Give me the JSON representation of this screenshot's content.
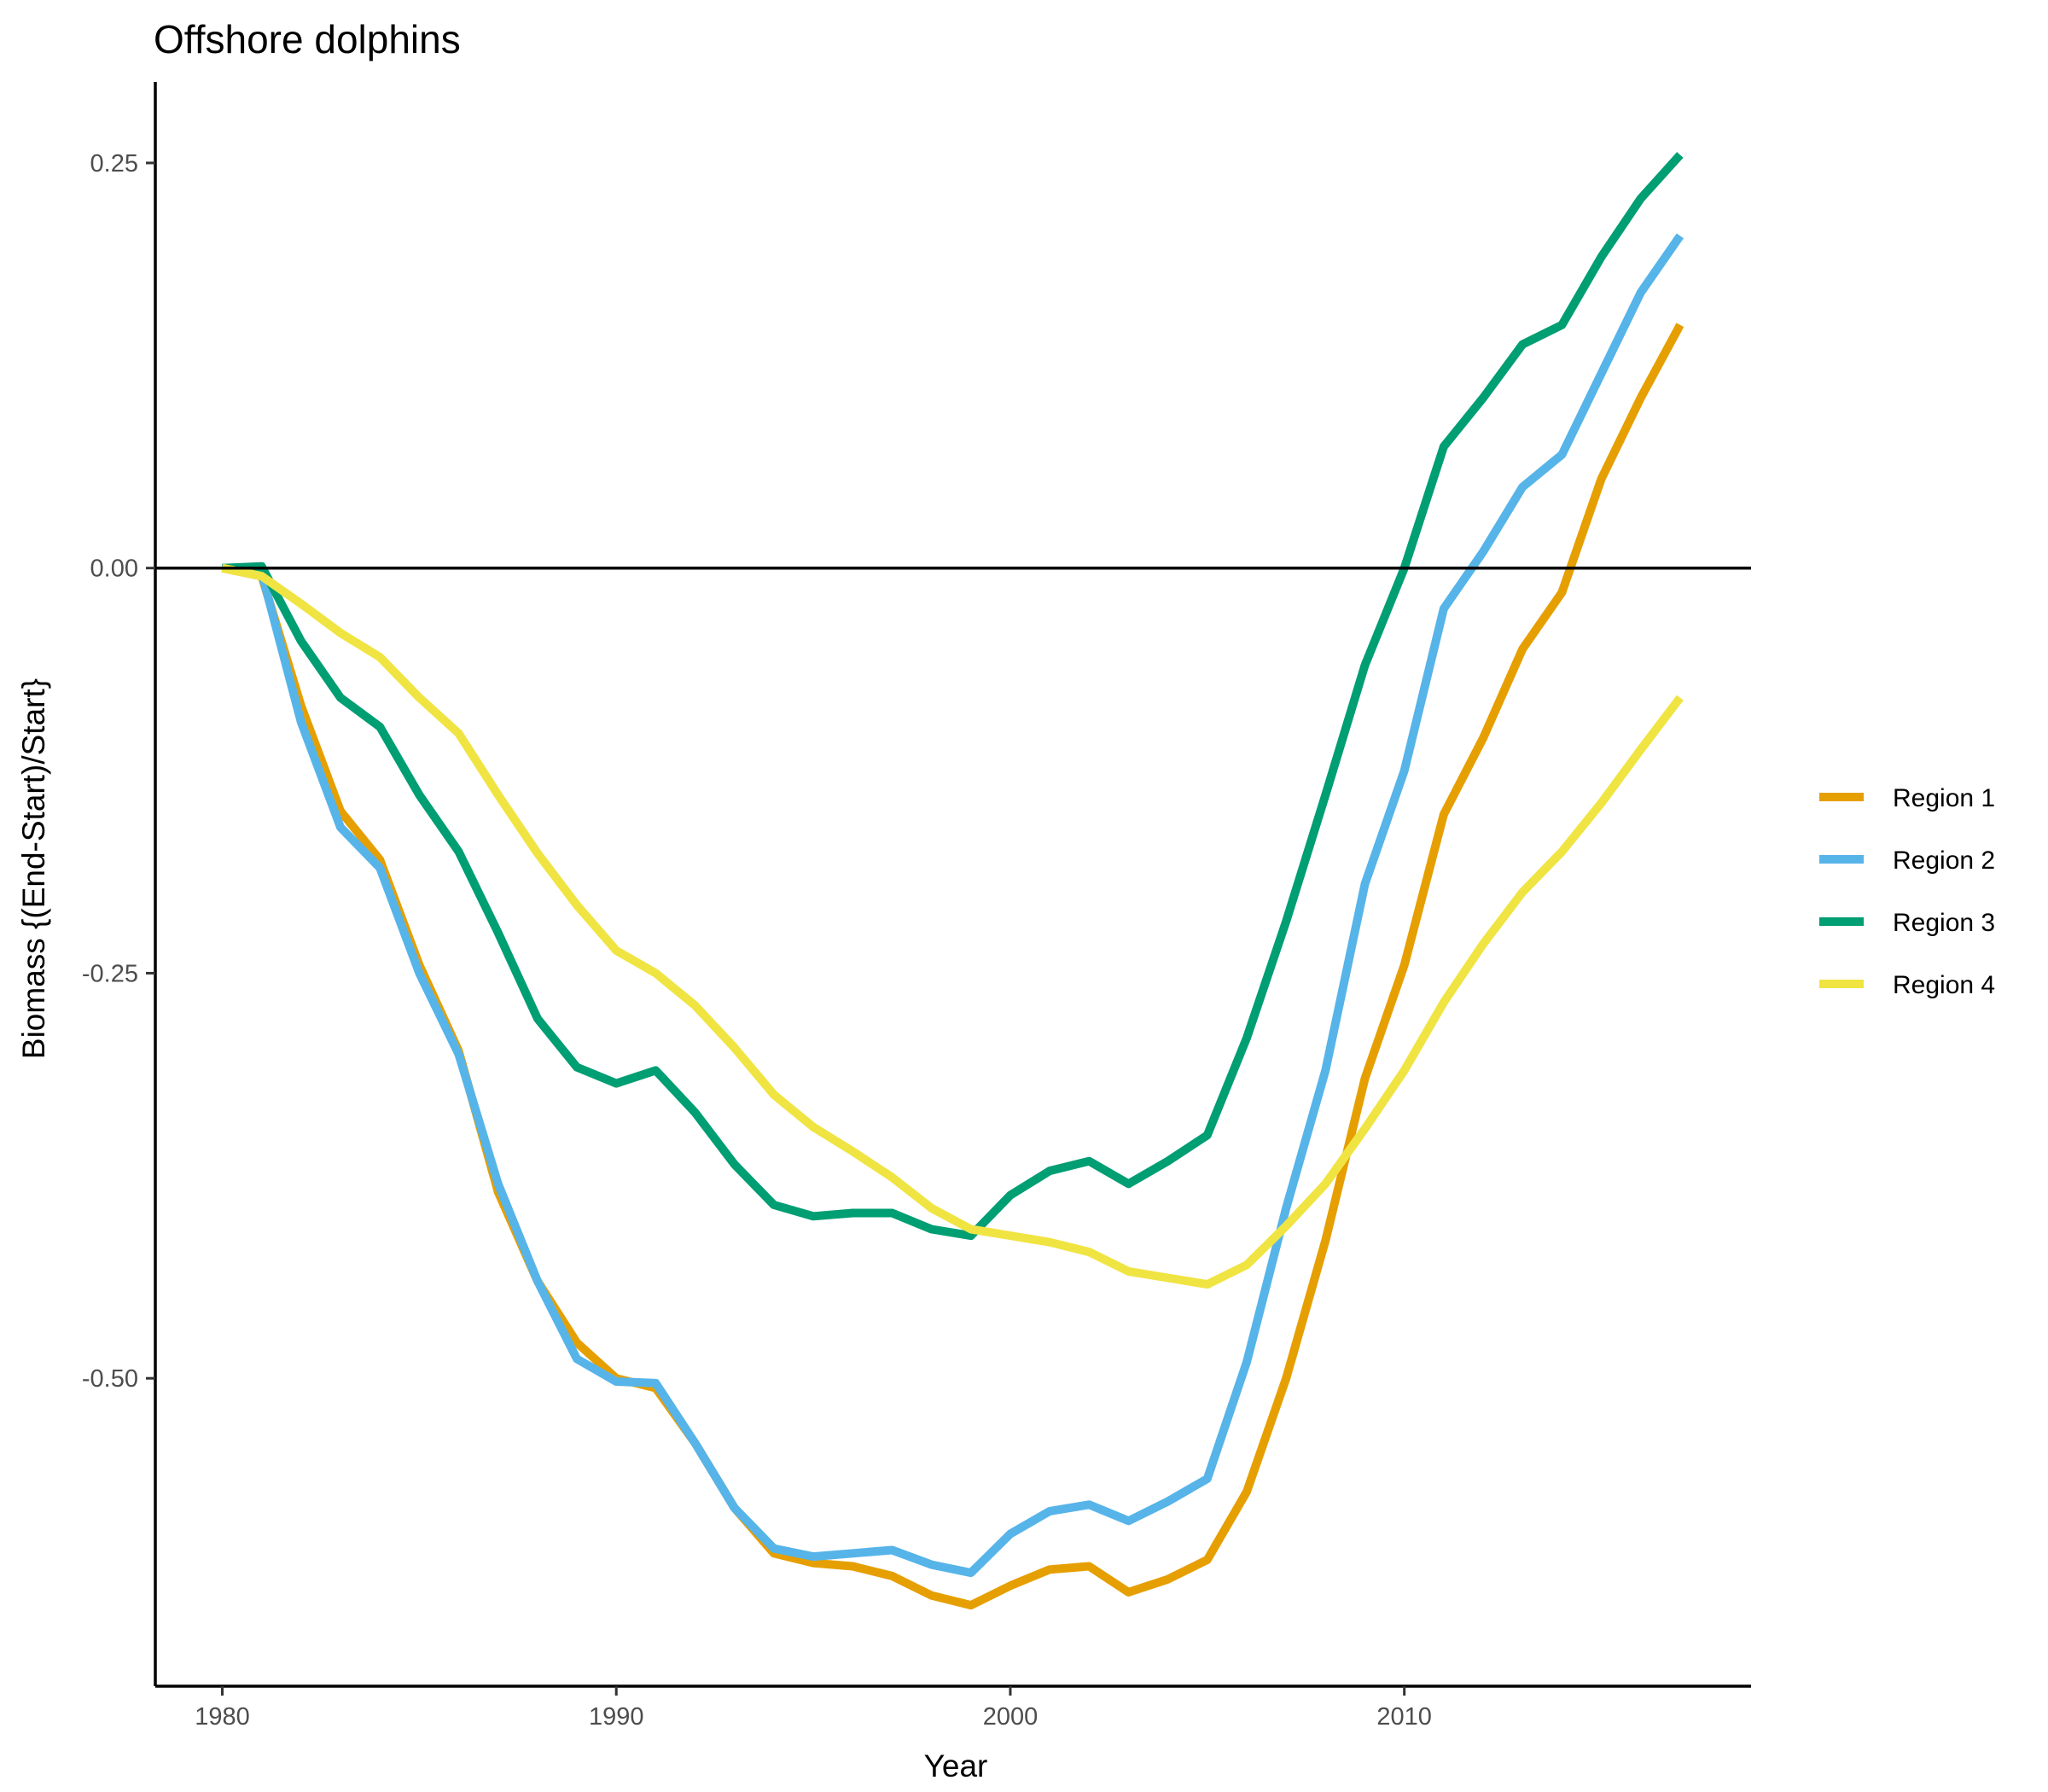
{
  "chart_data": {
    "type": "line",
    "title": "Offshore dolphins",
    "xlabel": "Year",
    "ylabel": "Biomass {(End-Start)/Start}",
    "xlim": [
      1978.3,
      2018.8
    ],
    "ylim": [
      -0.69,
      0.3
    ],
    "xticks": [
      1980,
      1990,
      2000,
      2010
    ],
    "xtick_labels": [
      "1980",
      "1990",
      "2000",
      "2010"
    ],
    "yticks": [
      0.25,
      0,
      -0.25,
      -0.5
    ],
    "ytick_labels": [
      "0.25",
      "0.00",
      "-0.25",
      "-0.50"
    ],
    "reference_line_y": 0,
    "grid": false,
    "legend_position": "right",
    "x": [
      1980,
      1981,
      1982,
      1983,
      1984,
      1985,
      1986,
      1987,
      1988,
      1989,
      1990,
      1991,
      1992,
      1993,
      1994,
      1995,
      1996,
      1997,
      1998,
      1999,
      2000,
      2001,
      2002,
      2003,
      2004,
      2005,
      2006,
      2007,
      2008,
      2009,
      2010,
      2011,
      2012,
      2013,
      2014,
      2015,
      2016,
      2017
    ],
    "series": [
      {
        "name": "Region 1",
        "color": "#E69F00",
        "values": [
          0,
          -0.005,
          -0.085,
          -0.15,
          -0.18,
          -0.245,
          -0.298,
          -0.385,
          -0.44,
          -0.478,
          -0.5,
          -0.506,
          -0.54,
          -0.58,
          -0.608,
          -0.614,
          -0.616,
          -0.622,
          -0.634,
          -0.64,
          -0.628,
          -0.618,
          -0.616,
          -0.632,
          -0.624,
          -0.612,
          -0.57,
          -0.5,
          -0.415,
          -0.315,
          -0.245,
          -0.152,
          -0.105,
          -0.05,
          -0.015,
          0.055,
          0.105,
          0.15
        ]
      },
      {
        "name": "Region 2",
        "color": "#56B4E9",
        "values": [
          0,
          -0.003,
          -0.095,
          -0.16,
          -0.185,
          -0.25,
          -0.3,
          -0.38,
          -0.44,
          -0.488,
          -0.502,
          -0.503,
          -0.54,
          -0.58,
          -0.605,
          -0.61,
          -0.608,
          -0.606,
          -0.615,
          -0.62,
          -0.596,
          -0.582,
          -0.578,
          -0.588,
          -0.576,
          -0.562,
          -0.49,
          -0.395,
          -0.31,
          -0.195,
          -0.125,
          -0.025,
          0.01,
          0.05,
          0.07,
          0.12,
          0.17,
          0.205
        ]
      },
      {
        "name": "Region 3",
        "color": "#009E73",
        "values": [
          0,
          0.001,
          -0.045,
          -0.08,
          -0.098,
          -0.14,
          -0.175,
          -0.225,
          -0.278,
          -0.308,
          -0.318,
          -0.31,
          -0.336,
          -0.368,
          -0.393,
          -0.4,
          -0.398,
          -0.398,
          -0.408,
          -0.412,
          -0.387,
          -0.372,
          -0.366,
          -0.38,
          -0.366,
          -0.35,
          -0.29,
          -0.218,
          -0.14,
          -0.06,
          0,
          0.075,
          0.105,
          0.138,
          0.15,
          0.192,
          0.228,
          0.255
        ]
      },
      {
        "name": "Region 4",
        "color": "#F0E442",
        "values": [
          0,
          -0.005,
          -0.022,
          -0.04,
          -0.055,
          -0.08,
          -0.102,
          -0.14,
          -0.176,
          -0.208,
          -0.236,
          -0.25,
          -0.27,
          -0.296,
          -0.325,
          -0.345,
          -0.36,
          -0.376,
          -0.395,
          -0.408,
          -0.412,
          -0.416,
          -0.422,
          -0.434,
          -0.438,
          -0.442,
          -0.43,
          -0.406,
          -0.38,
          -0.346,
          -0.31,
          -0.268,
          -0.232,
          -0.2,
          -0.175,
          -0.145,
          -0.112,
          -0.08
        ]
      }
    ]
  }
}
